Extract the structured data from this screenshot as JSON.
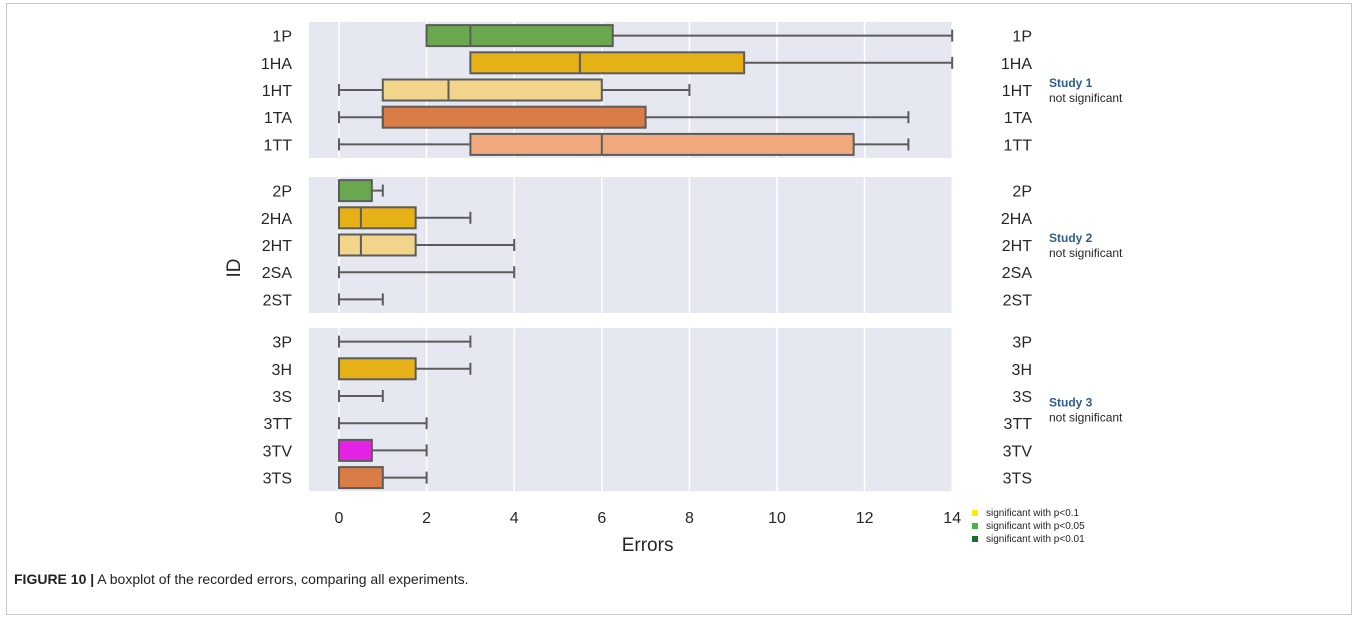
{
  "caption": {
    "label": "FIGURE 10 |",
    "text": " A boxplot of the recorded errors, comparing all experiments."
  },
  "chart_data": {
    "type": "box",
    "xlabel": "Errors",
    "ylabel": "ID",
    "xlim": [
      -0.7,
      14.5
    ],
    "x_ticks": [
      0,
      2,
      4,
      6,
      8,
      10,
      12,
      14
    ],
    "grid": true,
    "panels": [
      {
        "study": "Study 1",
        "note": "not significant",
        "boxes": [
          {
            "id": "1P",
            "whislo": 2,
            "q1": 2,
            "med": 3,
            "q3": 6.25,
            "whishi": 14,
            "color": "#6aa84f"
          },
          {
            "id": "1HA",
            "whislo": 3,
            "q1": 3,
            "med": 5.5,
            "q3": 9.25,
            "whishi": 14,
            "color": "#e6b017"
          },
          {
            "id": "1HT",
            "whislo": 0,
            "q1": 1,
            "med": 2.5,
            "q3": 6,
            "whishi": 8,
            "color": "#f2d58a"
          },
          {
            "id": "1TA",
            "whislo": 0,
            "q1": 1,
            "med": 1,
            "q3": 7,
            "whishi": 13,
            "color": "#d97c45"
          },
          {
            "id": "1TT",
            "whislo": 0,
            "q1": 3,
            "med": 6,
            "q3": 11.75,
            "whishi": 13,
            "color": "#f0a97c"
          }
        ]
      },
      {
        "study": "Study 2",
        "note": "not significant",
        "boxes": [
          {
            "id": "2P",
            "whislo": 0,
            "q1": 0,
            "med": 0,
            "q3": 0.75,
            "whishi": 1,
            "color": "#6aa84f"
          },
          {
            "id": "2HA",
            "whislo": 0,
            "q1": 0,
            "med": 0.5,
            "q3": 1.75,
            "whishi": 3,
            "color": "#e6b017"
          },
          {
            "id": "2HT",
            "whislo": 0,
            "q1": 0,
            "med": 0.5,
            "q3": 1.75,
            "whishi": 4,
            "color": "#f2d58a"
          },
          {
            "id": "2SA",
            "whislo": 0,
            "q1": 0,
            "med": 0,
            "q3": 0,
            "whishi": 4,
            "color": "#d97c45"
          },
          {
            "id": "2ST",
            "whislo": 0,
            "q1": 0,
            "med": 0,
            "q3": 0,
            "whishi": 1,
            "color": "#f0a97c"
          }
        ]
      },
      {
        "study": "Study 3",
        "note": "not significant",
        "boxes": [
          {
            "id": "3P",
            "whislo": 0,
            "q1": 0,
            "med": 0,
            "q3": 0,
            "whishi": 3,
            "color": "#6aa84f"
          },
          {
            "id": "3H",
            "whislo": 0,
            "q1": 0,
            "med": 0,
            "q3": 1.75,
            "whishi": 3,
            "color": "#e6b017"
          },
          {
            "id": "3S",
            "whislo": 0,
            "q1": 0,
            "med": 0,
            "q3": 0,
            "whishi": 1,
            "color": "#f2d58a"
          },
          {
            "id": "3TT",
            "whislo": 0,
            "q1": 0,
            "med": 0,
            "q3": 0,
            "whishi": 2,
            "color": "#d97c45"
          },
          {
            "id": "3TV",
            "whislo": 0,
            "q1": 0,
            "med": 0,
            "q3": 0.75,
            "whishi": 2,
            "color": "#e621e6"
          },
          {
            "id": "3TS",
            "whislo": 0,
            "q1": 0,
            "med": 0,
            "q3": 1,
            "whishi": 2,
            "color": "#d97c45"
          }
        ]
      }
    ],
    "legend": [
      {
        "label": "significant with p<0.1",
        "color": "#ffee00"
      },
      {
        "label": "significant with p<0.05",
        "color": "#49b24a"
      },
      {
        "label": "significant with p<0.01",
        "color": "#1e6b2e"
      }
    ]
  },
  "colors": {
    "panel_bg": "#e5e8f0",
    "grid": "#ffffff",
    "box_edge": "#5c5c5c"
  }
}
